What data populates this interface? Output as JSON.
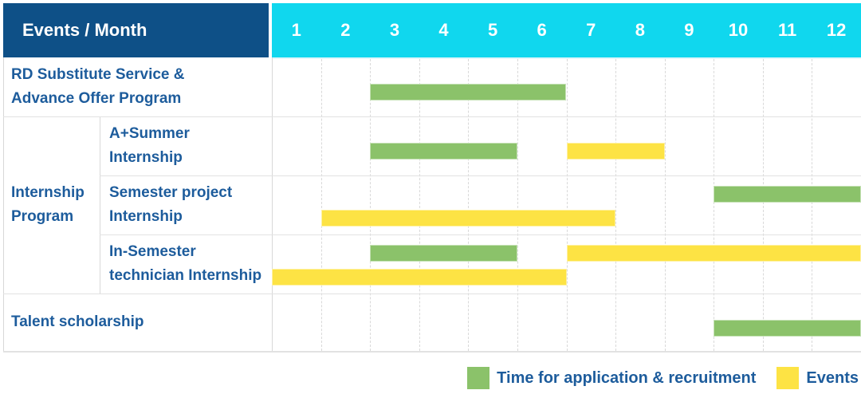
{
  "header": {
    "title": "Events / Month"
  },
  "colors": {
    "header_bg": "#0e5087",
    "months_header_bg": "#10d7ee",
    "header_text": "#ffffff",
    "label_text": "#1d5c9c",
    "application": "#8bc26a",
    "event": "#fde344"
  },
  "chart_data": {
    "type": "table",
    "title": "Events / Month",
    "columns": [
      "1",
      "2",
      "3",
      "4",
      "5",
      "6",
      "7",
      "8",
      "9",
      "10",
      "11",
      "12"
    ],
    "rows": [
      {
        "group": null,
        "label": "RD Substitute Service &\nAdvance Offer Program",
        "bars": [
          {
            "kind": "application",
            "start": 3,
            "end": 6,
            "lane": "single"
          }
        ]
      },
      {
        "group": "Internship\nProgram",
        "label": "A+Summer\nInternship",
        "bars": [
          {
            "kind": "application",
            "start": 3,
            "end": 5,
            "lane": "single"
          },
          {
            "kind": "event",
            "start": 7,
            "end": 8,
            "lane": "single"
          }
        ]
      },
      {
        "group": "Internship\nProgram",
        "label": "Semester project\nInternship",
        "bars": [
          {
            "kind": "application",
            "start": 10,
            "end": 12,
            "lane": "top"
          },
          {
            "kind": "event",
            "start": 2,
            "end": 7,
            "lane": "bottom"
          }
        ]
      },
      {
        "group": "Internship\nProgram",
        "label": "In-Semester\ntechnician Internship",
        "bars": [
          {
            "kind": "application",
            "start": 3,
            "end": 5,
            "lane": "top"
          },
          {
            "kind": "event",
            "start": 7,
            "end": 12,
            "lane": "top"
          },
          {
            "kind": "event",
            "start": 1,
            "end": 6,
            "lane": "bottom"
          }
        ]
      },
      {
        "group": null,
        "label": "Talent scholarship",
        "bars": [
          {
            "kind": "application",
            "start": 10,
            "end": 12,
            "lane": "single"
          }
        ]
      }
    ],
    "legend": [
      {
        "kind": "application",
        "label": "Time for application & recruitment"
      },
      {
        "kind": "event",
        "label": "Events"
      }
    ]
  }
}
